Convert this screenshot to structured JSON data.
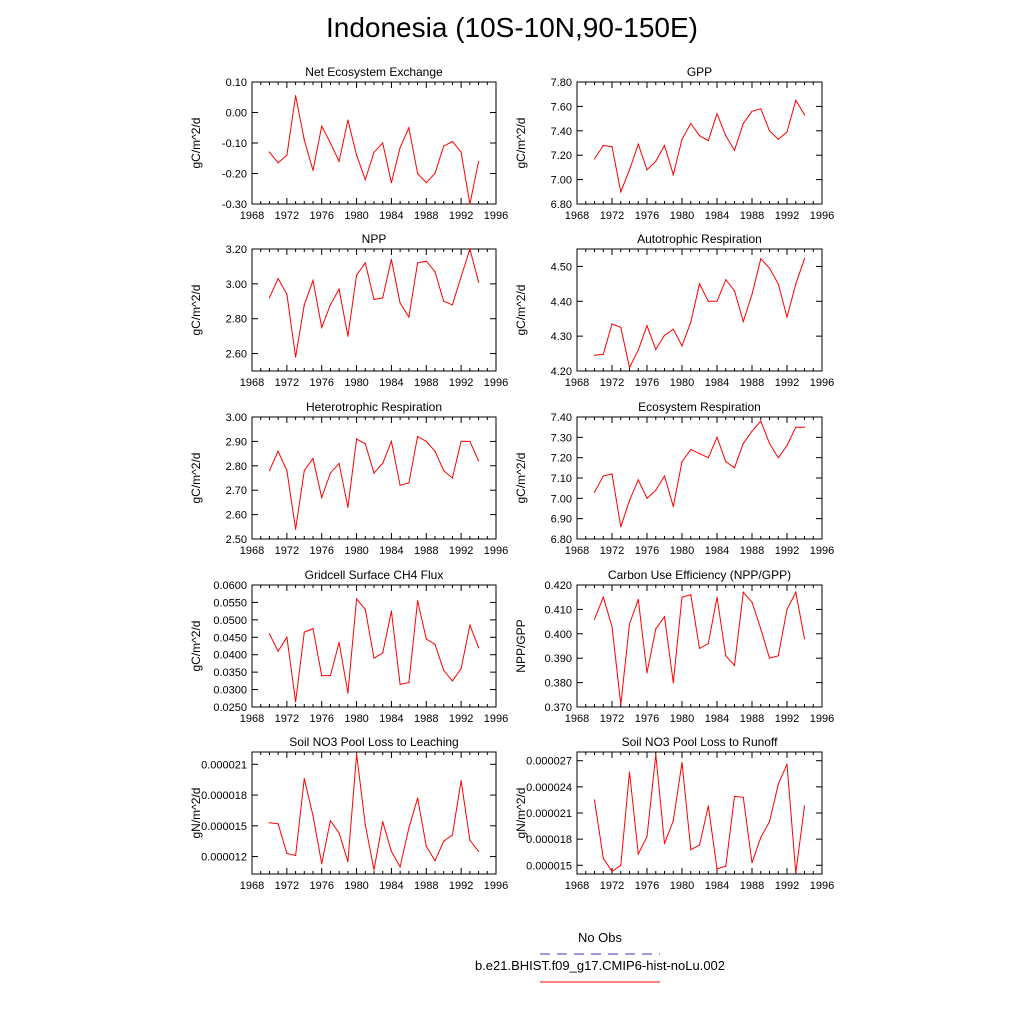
{
  "title": "Indonesia (10S-10N,90-150E)",
  "colors": {
    "series": "#ff0000",
    "obs": "#3333cc",
    "axis": "#000000"
  },
  "legend": [
    {
      "label": "No Obs",
      "style": "dashed",
      "color": "#3333cc"
    },
    {
      "label": "b.e21.BHIST.f09_g17.CMIP6-hist-noLu.002",
      "style": "solid",
      "color": "#ff0000"
    }
  ],
  "chart_data": [
    {
      "type": "line",
      "title": "Net Ecosystem Exchange",
      "ylabel": "gC/m^2/d",
      "xlim": [
        1968,
        1996
      ],
      "xticks": [
        "1968",
        "1972",
        "1976",
        "1980",
        "1984",
        "1988",
        "1992",
        "1996"
      ],
      "ylim": [
        -0.3,
        0.1
      ],
      "yticks": [
        "-0.30",
        "-0.20",
        "-0.10",
        "0.00",
        "0.10"
      ],
      "series": [
        {
          "x": [
            1970,
            1971,
            1972,
            1973,
            1974,
            1975,
            1976,
            1977,
            1978,
            1979,
            1980,
            1981,
            1982,
            1983,
            1984,
            1985,
            1986,
            1987,
            1988,
            1989,
            1990,
            1991,
            1992,
            1993,
            1994
          ],
          "values": [
            -0.13,
            -0.165,
            -0.14,
            0.055,
            -0.09,
            -0.19,
            -0.045,
            -0.1,
            -0.16,
            -0.025,
            -0.14,
            -0.22,
            -0.13,
            -0.1,
            -0.23,
            -0.115,
            -0.05,
            -0.2,
            -0.23,
            -0.2,
            -0.11,
            -0.095,
            -0.13,
            -0.3,
            -0.16
          ]
        }
      ]
    },
    {
      "type": "line",
      "title": "GPP",
      "ylabel": "gC/m^2/d",
      "xlim": [
        1968,
        1996
      ],
      "xticks": [
        "1968",
        "1972",
        "1976",
        "1980",
        "1984",
        "1988",
        "1992",
        "1996"
      ],
      "ylim": [
        6.8,
        7.8
      ],
      "yticks": [
        "6.80",
        "7.00",
        "7.20",
        "7.40",
        "7.60",
        "7.80"
      ],
      "series": [
        {
          "x": [
            1970,
            1971,
            1972,
            1973,
            1974,
            1975,
            1976,
            1977,
            1978,
            1979,
            1980,
            1981,
            1982,
            1983,
            1984,
            1985,
            1986,
            1987,
            1988,
            1989,
            1990,
            1991,
            1992,
            1993,
            1994
          ],
          "values": [
            7.17,
            7.28,
            7.27,
            6.9,
            7.08,
            7.29,
            7.08,
            7.15,
            7.28,
            7.04,
            7.33,
            7.46,
            7.36,
            7.32,
            7.54,
            7.36,
            7.24,
            7.46,
            7.56,
            7.58,
            7.4,
            7.33,
            7.39,
            7.65,
            7.53
          ]
        }
      ]
    },
    {
      "type": "line",
      "title": "NPP",
      "ylabel": "gC/m^2/d",
      "xlim": [
        1968,
        1996
      ],
      "xticks": [
        "1968",
        "1972",
        "1976",
        "1980",
        "1984",
        "1988",
        "1992",
        "1996"
      ],
      "ylim": [
        2.5,
        3.2
      ],
      "yticks": [
        "2.60",
        "2.80",
        "3.00",
        "3.20"
      ],
      "series": [
        {
          "x": [
            1970,
            1971,
            1972,
            1973,
            1974,
            1975,
            1976,
            1977,
            1978,
            1979,
            1980,
            1981,
            1982,
            1983,
            1984,
            1985,
            1986,
            1987,
            1988,
            1989,
            1990,
            1991,
            1992,
            1993,
            1994
          ],
          "values": [
            2.92,
            3.03,
            2.94,
            2.58,
            2.88,
            3.02,
            2.75,
            2.88,
            2.97,
            2.7,
            3.05,
            3.12,
            2.91,
            2.92,
            3.14,
            2.89,
            2.81,
            3.12,
            3.13,
            3.07,
            2.9,
            2.88,
            3.04,
            3.2,
            3.01
          ]
        }
      ]
    },
    {
      "type": "line",
      "title": "Autotrophic Respiration",
      "ylabel": "gC/m^2/d",
      "xlim": [
        1968,
        1996
      ],
      "xticks": [
        "1968",
        "1972",
        "1976",
        "1980",
        "1984",
        "1988",
        "1992",
        "1996"
      ],
      "ylim": [
        4.2,
        4.55
      ],
      "yticks": [
        "4.20",
        "4.30",
        "4.40",
        "4.50"
      ],
      "series": [
        {
          "x": [
            1970,
            1971,
            1972,
            1973,
            1974,
            1975,
            1976,
            1977,
            1978,
            1979,
            1980,
            1981,
            1982,
            1983,
            1984,
            1985,
            1986,
            1987,
            1988,
            1989,
            1990,
            1991,
            1992,
            1993,
            1994
          ],
          "values": [
            4.245,
            4.248,
            4.335,
            4.325,
            4.21,
            4.26,
            4.33,
            4.262,
            4.302,
            4.32,
            4.272,
            4.34,
            4.45,
            4.4,
            4.4,
            4.462,
            4.43,
            4.342,
            4.42,
            4.522,
            4.495,
            4.45,
            4.355,
            4.45,
            4.522
          ]
        }
      ]
    },
    {
      "type": "line",
      "title": "Heterotrophic Respiration",
      "ylabel": "gC/m^2/d",
      "xlim": [
        1968,
        1996
      ],
      "xticks": [
        "1968",
        "1972",
        "1976",
        "1980",
        "1984",
        "1988",
        "1992",
        "1996"
      ],
      "ylim": [
        2.5,
        3.0
      ],
      "yticks": [
        "2.50",
        "2.60",
        "2.70",
        "2.80",
        "2.90",
        "3.00"
      ],
      "series": [
        {
          "x": [
            1970,
            1971,
            1972,
            1973,
            1974,
            1975,
            1976,
            1977,
            1978,
            1979,
            1980,
            1981,
            1982,
            1983,
            1984,
            1985,
            1986,
            1987,
            1988,
            1989,
            1990,
            1991,
            1992,
            1993,
            1994
          ],
          "values": [
            2.78,
            2.86,
            2.78,
            2.54,
            2.78,
            2.83,
            2.67,
            2.77,
            2.81,
            2.63,
            2.91,
            2.89,
            2.77,
            2.81,
            2.9,
            2.72,
            2.73,
            2.92,
            2.9,
            2.86,
            2.78,
            2.75,
            2.9,
            2.9,
            2.82
          ]
        }
      ]
    },
    {
      "type": "line",
      "title": "Ecosystem Respiration",
      "ylabel": "gC/m^2/d",
      "xlim": [
        1968,
        1996
      ],
      "xticks": [
        "1968",
        "1972",
        "1976",
        "1980",
        "1984",
        "1988",
        "1992",
        "1996"
      ],
      "ylim": [
        6.8,
        7.4
      ],
      "yticks": [
        "6.80",
        "6.90",
        "7.00",
        "7.10",
        "7.20",
        "7.30",
        "7.40"
      ],
      "series": [
        {
          "x": [
            1970,
            1971,
            1972,
            1973,
            1974,
            1975,
            1976,
            1977,
            1978,
            1979,
            1980,
            1981,
            1982,
            1983,
            1984,
            1985,
            1986,
            1987,
            1988,
            1989,
            1990,
            1991,
            1992,
            1993,
            1994
          ],
          "values": [
            7.03,
            7.11,
            7.12,
            6.86,
            6.99,
            7.09,
            7.0,
            7.04,
            7.11,
            6.96,
            7.18,
            7.24,
            7.22,
            7.2,
            7.3,
            7.18,
            7.15,
            7.27,
            7.33,
            7.38,
            7.27,
            7.2,
            7.26,
            7.35,
            7.35
          ]
        }
      ]
    },
    {
      "type": "line",
      "title": "Gridcell Surface CH4 Flux",
      "ylabel": "gC/m^2/d",
      "xlim": [
        1968,
        1996
      ],
      "xticks": [
        "1968",
        "1972",
        "1976",
        "1980",
        "1984",
        "1988",
        "1992",
        "1996"
      ],
      "ylim": [
        0.025,
        0.06
      ],
      "yticks": [
        "0.0250",
        "0.0300",
        "0.0350",
        "0.0400",
        "0.0450",
        "0.0500",
        "0.0550",
        "0.0600"
      ],
      "series": [
        {
          "x": [
            1970,
            1971,
            1972,
            1973,
            1974,
            1975,
            1976,
            1977,
            1978,
            1979,
            1980,
            1981,
            1982,
            1983,
            1984,
            1985,
            1986,
            1987,
            1988,
            1989,
            1990,
            1991,
            1992,
            1993,
            1994
          ],
          "values": [
            0.046,
            0.041,
            0.045,
            0.0265,
            0.0465,
            0.0475,
            0.034,
            0.034,
            0.0435,
            0.029,
            0.056,
            0.053,
            0.039,
            0.0405,
            0.0525,
            0.0315,
            0.032,
            0.0555,
            0.0445,
            0.043,
            0.0355,
            0.0325,
            0.036,
            0.0485,
            0.042
          ]
        }
      ]
    },
    {
      "type": "line",
      "title": "Carbon Use Efficiency (NPP/GPP)",
      "ylabel": "NPP/GPP",
      "xlim": [
        1968,
        1996
      ],
      "xticks": [
        "1968",
        "1972",
        "1976",
        "1980",
        "1984",
        "1988",
        "1992",
        "1996"
      ],
      "ylim": [
        0.37,
        0.42
      ],
      "yticks": [
        "0.370",
        "0.380",
        "0.390",
        "0.400",
        "0.410",
        "0.420"
      ],
      "series": [
        {
          "x": [
            1970,
            1971,
            1972,
            1973,
            1974,
            1975,
            1976,
            1977,
            1978,
            1979,
            1980,
            1981,
            1982,
            1983,
            1984,
            1985,
            1986,
            1987,
            1988,
            1989,
            1990,
            1991,
            1992,
            1993,
            1994
          ],
          "values": [
            0.406,
            0.415,
            0.403,
            0.371,
            0.404,
            0.414,
            0.384,
            0.402,
            0.407,
            0.38,
            0.415,
            0.416,
            0.394,
            0.396,
            0.415,
            0.391,
            0.387,
            0.417,
            0.413,
            0.402,
            0.39,
            0.391,
            0.41,
            0.417,
            0.398
          ]
        }
      ]
    },
    {
      "type": "line",
      "title": "Soil NO3 Pool Loss to Leaching",
      "ylabel": "gN/m^2/d",
      "xlim": [
        1968,
        1996
      ],
      "xticks": [
        "1968",
        "1972",
        "1976",
        "1980",
        "1984",
        "1988",
        "1992",
        "1996"
      ],
      "ylim": [
        1.03e-05,
        2.22e-05
      ],
      "yticks": [
        "0.000012",
        "0.000015",
        "0.000018",
        "0.000021"
      ],
      "series": [
        {
          "x": [
            1970,
            1971,
            1972,
            1973,
            1974,
            1975,
            1976,
            1977,
            1978,
            1979,
            1980,
            1981,
            1982,
            1983,
            1984,
            1985,
            1986,
            1987,
            1988,
            1989,
            1990,
            1991,
            1992,
            1993,
            1994
          ],
          "values": [
            1.53e-05,
            1.52e-05,
            1.23e-05,
            1.21e-05,
            1.96e-05,
            1.6e-05,
            1.13e-05,
            1.55e-05,
            1.43e-05,
            1.15e-05,
            2.2e-05,
            1.51e-05,
            1.07e-05,
            1.54e-05,
            1.25e-05,
            1.1e-05,
            1.48e-05,
            1.77e-05,
            1.3e-05,
            1.16e-05,
            1.35e-05,
            1.41e-05,
            1.94e-05,
            1.36e-05,
            1.25e-05
          ]
        }
      ]
    },
    {
      "type": "line",
      "title": "Soil NO3 Pool Loss to Runoff",
      "ylabel": "gN/m^2/d",
      "xlim": [
        1968,
        1996
      ],
      "xticks": [
        "1968",
        "1972",
        "1976",
        "1980",
        "1984",
        "1988",
        "1992",
        "1996"
      ],
      "ylim": [
        1.4e-05,
        2.8e-05
      ],
      "yticks": [
        "0.000015",
        "0.000018",
        "0.000021",
        "0.000024",
        "0.000027"
      ],
      "series": [
        {
          "x": [
            1970,
            1971,
            1972,
            1973,
            1974,
            1975,
            1976,
            1977,
            1978,
            1979,
            1980,
            1981,
            1982,
            1983,
            1984,
            1985,
            1986,
            1987,
            1988,
            1989,
            1990,
            1991,
            1992,
            1993,
            1994
          ],
          "values": [
            2.25e-05,
            1.58e-05,
            1.43e-05,
            1.5e-05,
            2.57e-05,
            1.63e-05,
            1.83e-05,
            2.77e-05,
            1.75e-05,
            2.01e-05,
            2.68e-05,
            1.68e-05,
            1.73e-05,
            2.18e-05,
            1.46e-05,
            1.49e-05,
            2.29e-05,
            2.28e-05,
            1.53e-05,
            1.82e-05,
            2e-05,
            2.43e-05,
            2.66e-05,
            1.41e-05,
            2.18e-05
          ]
        }
      ]
    }
  ]
}
